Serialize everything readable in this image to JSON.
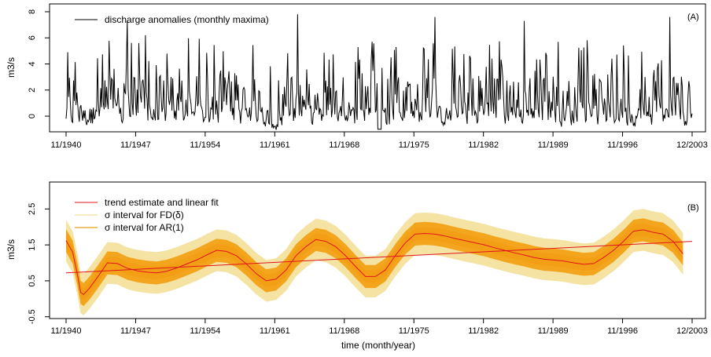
{
  "chart_data": [
    {
      "type": "line",
      "panel_label": "(A)",
      "ylabel": "m3/s",
      "xlabel": "",
      "x_range": [
        "11/1940",
        "12/2003"
      ],
      "ylim": [
        -1.2,
        8.6
      ],
      "y_ticks": [
        0,
        2,
        4,
        6,
        8
      ],
      "x_ticks": [
        "11/1940",
        "11/1947",
        "11/1954",
        "11/1961",
        "11/1968",
        "11/1975",
        "11/1982",
        "11/1989",
        "11/1996",
        "12/2003"
      ],
      "legend": [
        "discharge anomalies (monthly maxima)"
      ],
      "legend_position": "top-left",
      "series_color": "#000000",
      "notable_peaks": [
        {
          "x": "1941-01",
          "y": 4.9
        },
        {
          "x": "1947-01",
          "y": 7.3
        },
        {
          "x": "1948-11",
          "y": 6.2
        },
        {
          "x": "1964-03",
          "y": 7.8
        },
        {
          "x": "1978-01",
          "y": 7.6
        },
        {
          "x": "1987-01",
          "y": 7.3
        },
        {
          "x": "2001-09",
          "y": 7.6
        }
      ]
    },
    {
      "type": "line",
      "panel_label": "(B)",
      "ylabel": "m3/s",
      "xlabel": "time (month/year)",
      "x_range": [
        "11/1940",
        "12/2003"
      ],
      "ylim": [
        -0.55,
        3.25
      ],
      "y_ticks": [
        "-0.5",
        "0.5",
        "1.5",
        "2.5"
      ],
      "x_ticks": [
        "11/1940",
        "11/1947",
        "11/1954",
        "11/1961",
        "11/1968",
        "11/1975",
        "11/1982",
        "11/1989",
        "11/1996",
        "12/2003"
      ],
      "legend": [
        "trend estimate and linear fit",
        "σ interval for FD(δ)",
        "σ interval for AR(1)"
      ],
      "legend_position": "top-left",
      "colors": {
        "trend": "#e0151b",
        "fd_band": "#f4e3a3",
        "ar_band": "#f4a51e"
      },
      "trend": {
        "x": [
          1940.83,
          1941.5,
          1942.0,
          1942.3,
          1942.6,
          1943.2,
          1944.0,
          1945.0,
          1946.0,
          1947.0,
          1948.0,
          1949.0,
          1950.0,
          1951.0,
          1952.0,
          1953.0,
          1954.0,
          1955.0,
          1956.0,
          1957.0,
          1958.0,
          1959.0,
          1960.0,
          1961.0,
          1962.0,
          1963.0,
          1964.0,
          1965.0,
          1966.0,
          1967.0,
          1968.0,
          1969.0,
          1970.0,
          1971.0,
          1972.0,
          1973.0,
          1974.0,
          1975.0,
          1976.0,
          1977.0,
          1978.0,
          1979.0,
          1980.0,
          1981.0,
          1982.0,
          1983.0,
          1984.0,
          1985.0,
          1986.0,
          1987.0,
          1988.0,
          1989.0,
          1990.0,
          1991.0,
          1992.0,
          1993.0,
          1994.0,
          1995.0,
          1996.0,
          1997.0,
          1998.0,
          1999.0,
          2000.0,
          2001.0,
          2002.0,
          2003.0
        ],
        "y": [
          1.62,
          1.3,
          0.65,
          0.18,
          0.12,
          0.3,
          0.6,
          1.0,
          0.98,
          0.85,
          0.78,
          0.74,
          0.72,
          0.77,
          0.86,
          0.97,
          1.08,
          1.22,
          1.35,
          1.32,
          1.2,
          0.97,
          0.7,
          0.5,
          0.55,
          0.8,
          1.2,
          1.45,
          1.65,
          1.6,
          1.45,
          1.2,
          0.9,
          0.62,
          0.62,
          0.8,
          1.2,
          1.55,
          1.8,
          1.82,
          1.8,
          1.75,
          1.68,
          1.62,
          1.56,
          1.5,
          1.42,
          1.35,
          1.28,
          1.22,
          1.15,
          1.1,
          1.08,
          1.05,
          1.0,
          0.96,
          0.98,
          1.15,
          1.35,
          1.6,
          1.88,
          1.92,
          1.85,
          1.8,
          1.6,
          1.25
        ],
        "fd_halfwidth": 0.58,
        "ar_halfwidth": 0.32
      },
      "linear_fit": {
        "x": [
          1940.83,
          2003.92
        ],
        "y": [
          0.72,
          1.6
        ]
      }
    }
  ]
}
